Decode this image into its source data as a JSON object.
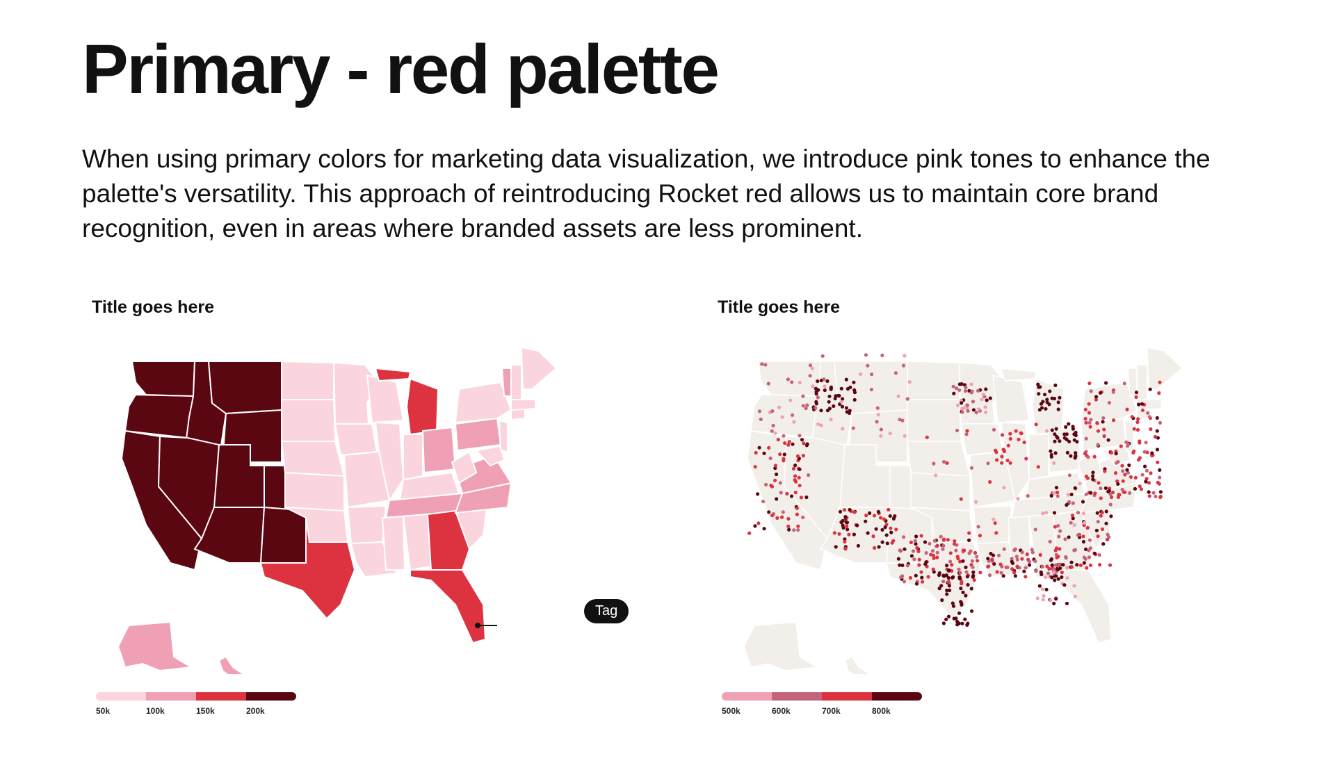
{
  "header": {
    "title": "Primary - red palette",
    "description": "When using primary colors for marketing data visualization, we introduce pink tones to enhance the palette's versatility. This approach of reintroducing Rocket red allows us to maintain core brand recognition, even in areas where branded assets are less prominent."
  },
  "colors": {
    "light_pink": "#fad5de",
    "mid_pink": "#f0a0b4",
    "rose": "#c4647b",
    "red": "#dd3340",
    "maroon": "#5b0712",
    "dot_map_base": "#f2efea",
    "border": "#ffffff"
  },
  "map_left": {
    "title": "Title goes here",
    "tag_label": "Tag",
    "legend": [
      {
        "label": "50k",
        "color": "#fad5de"
      },
      {
        "label": "100k",
        "color": "#f0a0b4"
      },
      {
        "label": "150k",
        "color": "#dd3340"
      },
      {
        "label": "200k",
        "color": "#5b0712"
      }
    ],
    "state_colors": {
      "WA": "#5b0712",
      "OR": "#5b0712",
      "CA": "#5b0712",
      "ID": "#5b0712",
      "NV": "#5b0712",
      "MT": "#5b0712",
      "WY": "#5b0712",
      "UT": "#5b0712",
      "AZ": "#5b0712",
      "CO": "#5b0712",
      "NM": "#5b0712",
      "TX": "#dd3340",
      "MI": "#dd3340",
      "GA": "#dd3340",
      "FL": "#dd3340",
      "OH": "#f0a0b4",
      "PA": "#f0a0b4",
      "VA": "#f0a0b4",
      "NC": "#f0a0b4",
      "TN": "#f0a0b4",
      "VT": "#f0a0b4",
      "AK": "#f0a0b4",
      "HI": "#f0a0b4"
    }
  },
  "map_right": {
    "title": "Title goes here",
    "legend": [
      {
        "label": "500k",
        "color": "#f0a0b4"
      },
      {
        "label": "600k",
        "color": "#c4647b"
      },
      {
        "label": "700k",
        "color": "#dd3340"
      },
      {
        "label": "800k",
        "color": "#5b0712"
      }
    ]
  }
}
